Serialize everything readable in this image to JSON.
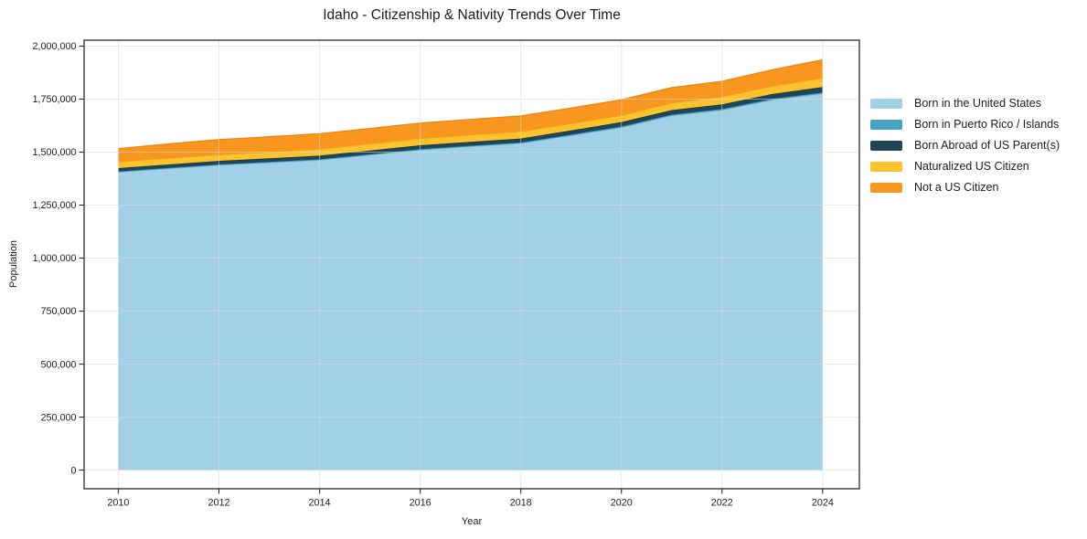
{
  "title": "Idaho - Citizenship & Nativity Trends Over Time",
  "axes": {
    "x_label": "Year",
    "y_label": "Population",
    "x_ticks": {
      "values": [
        2010,
        2012,
        2014,
        2016,
        2018,
        2020,
        2022,
        2024
      ],
      "labels": [
        "2010",
        "2012",
        "2014",
        "2016",
        "2018",
        "2020",
        "2022",
        "2024"
      ]
    },
    "y_ticks": {
      "values": [
        0,
        250000,
        500000,
        750000,
        1000000,
        1250000,
        1500000,
        1750000,
        2000000
      ],
      "labels": [
        "0",
        "250,000",
        "500,000",
        "750,000",
        "1,000,000",
        "1,250,000",
        "1,500,000",
        "1,750,000",
        "2,000,000"
      ]
    },
    "xlim": [
      2009.32,
      2024.73
    ],
    "ylim": [
      -88000,
      2028000
    ],
    "grid": true
  },
  "legend": {
    "position": "right-outside",
    "items": [
      {
        "label": "Born in the United States",
        "color": "#a1d0e7"
      },
      {
        "label": "Born in Puerto Rico / Islands",
        "color": "#47a4c2"
      },
      {
        "label": "Born Abroad of US Parent(s)",
        "color": "#1f4557"
      },
      {
        "label": "Naturalized US Citizen",
        "color": "#fdc32f"
      },
      {
        "label": "Not a US Citizen",
        "color": "#f8961f"
      }
    ]
  },
  "chart_data": {
    "type": "area",
    "stacked": true,
    "title": "Idaho - Citizenship & Nativity Trends Over Time",
    "xlabel": "Year",
    "ylabel": "Population",
    "ylim": [
      -88000,
      2028000
    ],
    "x": [
      2010,
      2011,
      2012,
      2013,
      2014,
      2015,
      2016,
      2017,
      2018,
      2019,
      2020,
      2021,
      2022,
      2023,
      2024
    ],
    "series": [
      {
        "name": "Born in the United States",
        "color": "#a1d0e7",
        "edge": "#85c0dd",
        "values": [
          1405000,
          1422000,
          1438000,
          1450000,
          1462000,
          1486000,
          1510000,
          1526000,
          1541000,
          1578000,
          1616000,
          1672000,
          1698000,
          1746000,
          1776000
        ]
      },
      {
        "name": "Born in Puerto Rico / Islands",
        "color": "#47a4c2",
        "edge": "#3795b4",
        "values": [
          3500,
          3600,
          3800,
          3900,
          4000,
          4100,
          4200,
          4400,
          4500,
          4700,
          4800,
          5000,
          5200,
          5400,
          5500
        ]
      },
      {
        "name": "Born Abroad of US Parent(s)",
        "color": "#1f4557",
        "edge": "#16333f",
        "values": [
          16000,
          16500,
          17000,
          17000,
          17500,
          17500,
          18000,
          18000,
          18500,
          19500,
          21000,
          21500,
          22000,
          23000,
          25500
        ]
      },
      {
        "name": "Naturalized US Citizen",
        "color": "#fdc32f",
        "edge": "#f0b317",
        "values": [
          30000,
          29000,
          28000,
          29000,
          30000,
          30500,
          31000,
          32000,
          33000,
          32000,
          31000,
          33000,
          35000,
          36000,
          42000
        ]
      },
      {
        "name": "Not a US Citizen",
        "color": "#f8961f",
        "edge": "#e8860e",
        "values": [
          62000,
          68000,
          72500,
          73000,
          73500,
          73500,
          74000,
          74000,
          74000,
          74000,
          74000,
          73000,
          74000,
          78000,
          86500
        ]
      }
    ]
  }
}
